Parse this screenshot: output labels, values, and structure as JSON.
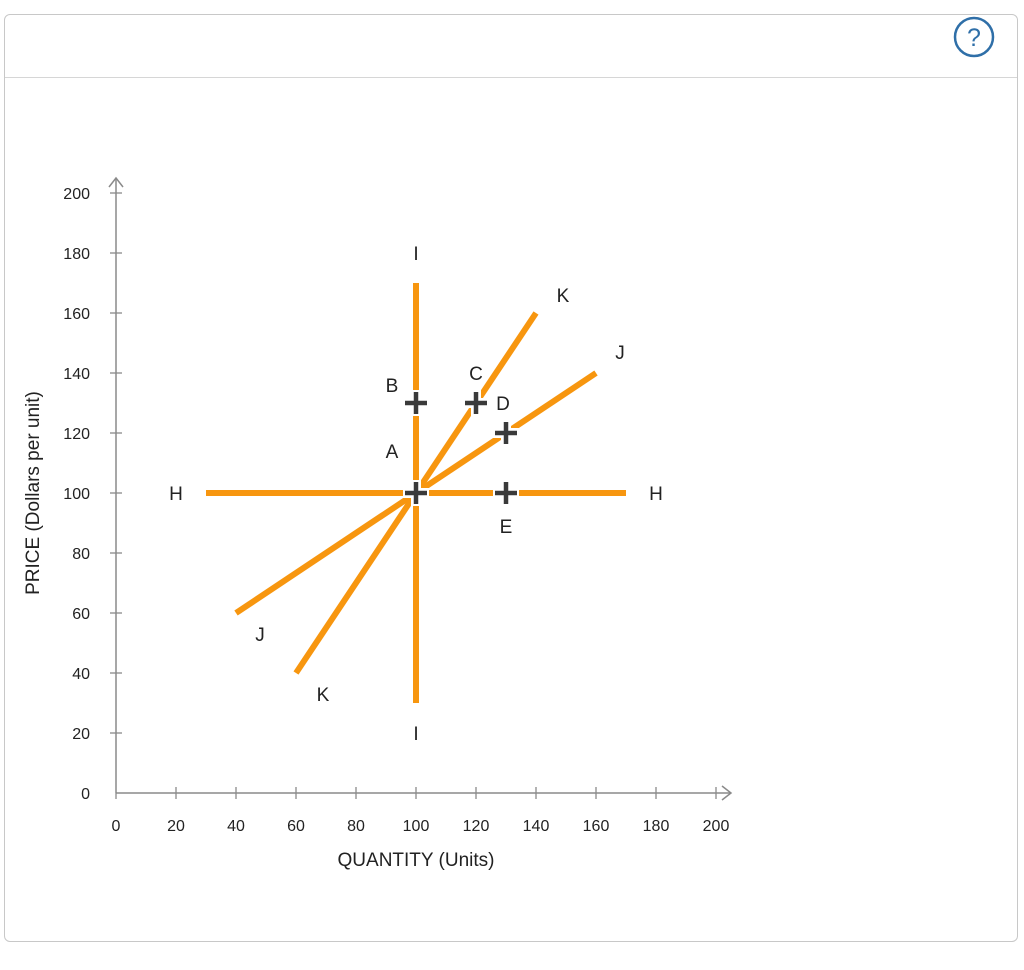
{
  "help": {
    "icon": "help-icon",
    "glyph": "?"
  },
  "chart_data": {
    "type": "line",
    "xlabel": "QUANTITY (Units)",
    "ylabel": "PRICE (Dollars per unit)",
    "xlim": [
      0,
      200
    ],
    "ylim": [
      0,
      200
    ],
    "xticks": [
      0,
      20,
      40,
      60,
      80,
      100,
      120,
      140,
      160,
      180,
      200
    ],
    "yticks": [
      0,
      20,
      40,
      60,
      80,
      100,
      120,
      140,
      160,
      180,
      200
    ],
    "xtick_labels": [
      "0",
      "20",
      "40",
      "60",
      "80",
      "100",
      "120",
      "140",
      "160",
      "180",
      "200"
    ],
    "ytick_labels": [
      "0",
      "20",
      "40",
      "60",
      "80",
      "100",
      "120",
      "140",
      "160",
      "180",
      "200"
    ],
    "grid": false,
    "line_color": "#f7960f",
    "point_color": "#3a3a3a",
    "series": [
      {
        "name": "H",
        "points": [
          [
            30,
            100
          ],
          [
            170,
            100
          ]
        ],
        "labels": [
          {
            "text": "H",
            "x": 20,
            "y": 100
          },
          {
            "text": "H",
            "x": 180,
            "y": 100
          }
        ]
      },
      {
        "name": "I",
        "points": [
          [
            100,
            170
          ],
          [
            100,
            30
          ]
        ],
        "labels": [
          {
            "text": "I",
            "x": 100,
            "y": 180
          },
          {
            "text": "I",
            "x": 100,
            "y": 20
          }
        ]
      },
      {
        "name": "J",
        "points": [
          [
            40,
            60
          ],
          [
            160,
            140
          ]
        ],
        "labels": [
          {
            "text": "J",
            "x": 48,
            "y": 53
          },
          {
            "text": "J",
            "x": 168,
            "y": 147
          }
        ]
      },
      {
        "name": "K",
        "points": [
          [
            60,
            40
          ],
          [
            140,
            160
          ]
        ],
        "labels": [
          {
            "text": "K",
            "x": 69,
            "y": 33
          },
          {
            "text": "K",
            "x": 149,
            "y": 166
          }
        ]
      }
    ],
    "points": [
      {
        "label": "A",
        "x": 100,
        "y": 100,
        "label_dx": -8,
        "label_dy": 14
      },
      {
        "label": "B",
        "x": 100,
        "y": 130,
        "label_dx": -8,
        "label_dy": 6
      },
      {
        "label": "C",
        "x": 120,
        "y": 130,
        "label_dx": 0,
        "label_dy": 10
      },
      {
        "label": "D",
        "x": 130,
        "y": 120,
        "label_dx": -1,
        "label_dy": 10
      },
      {
        "label": "E",
        "x": 130,
        "y": 100,
        "label_dx": 0,
        "label_dy": -11
      }
    ]
  }
}
